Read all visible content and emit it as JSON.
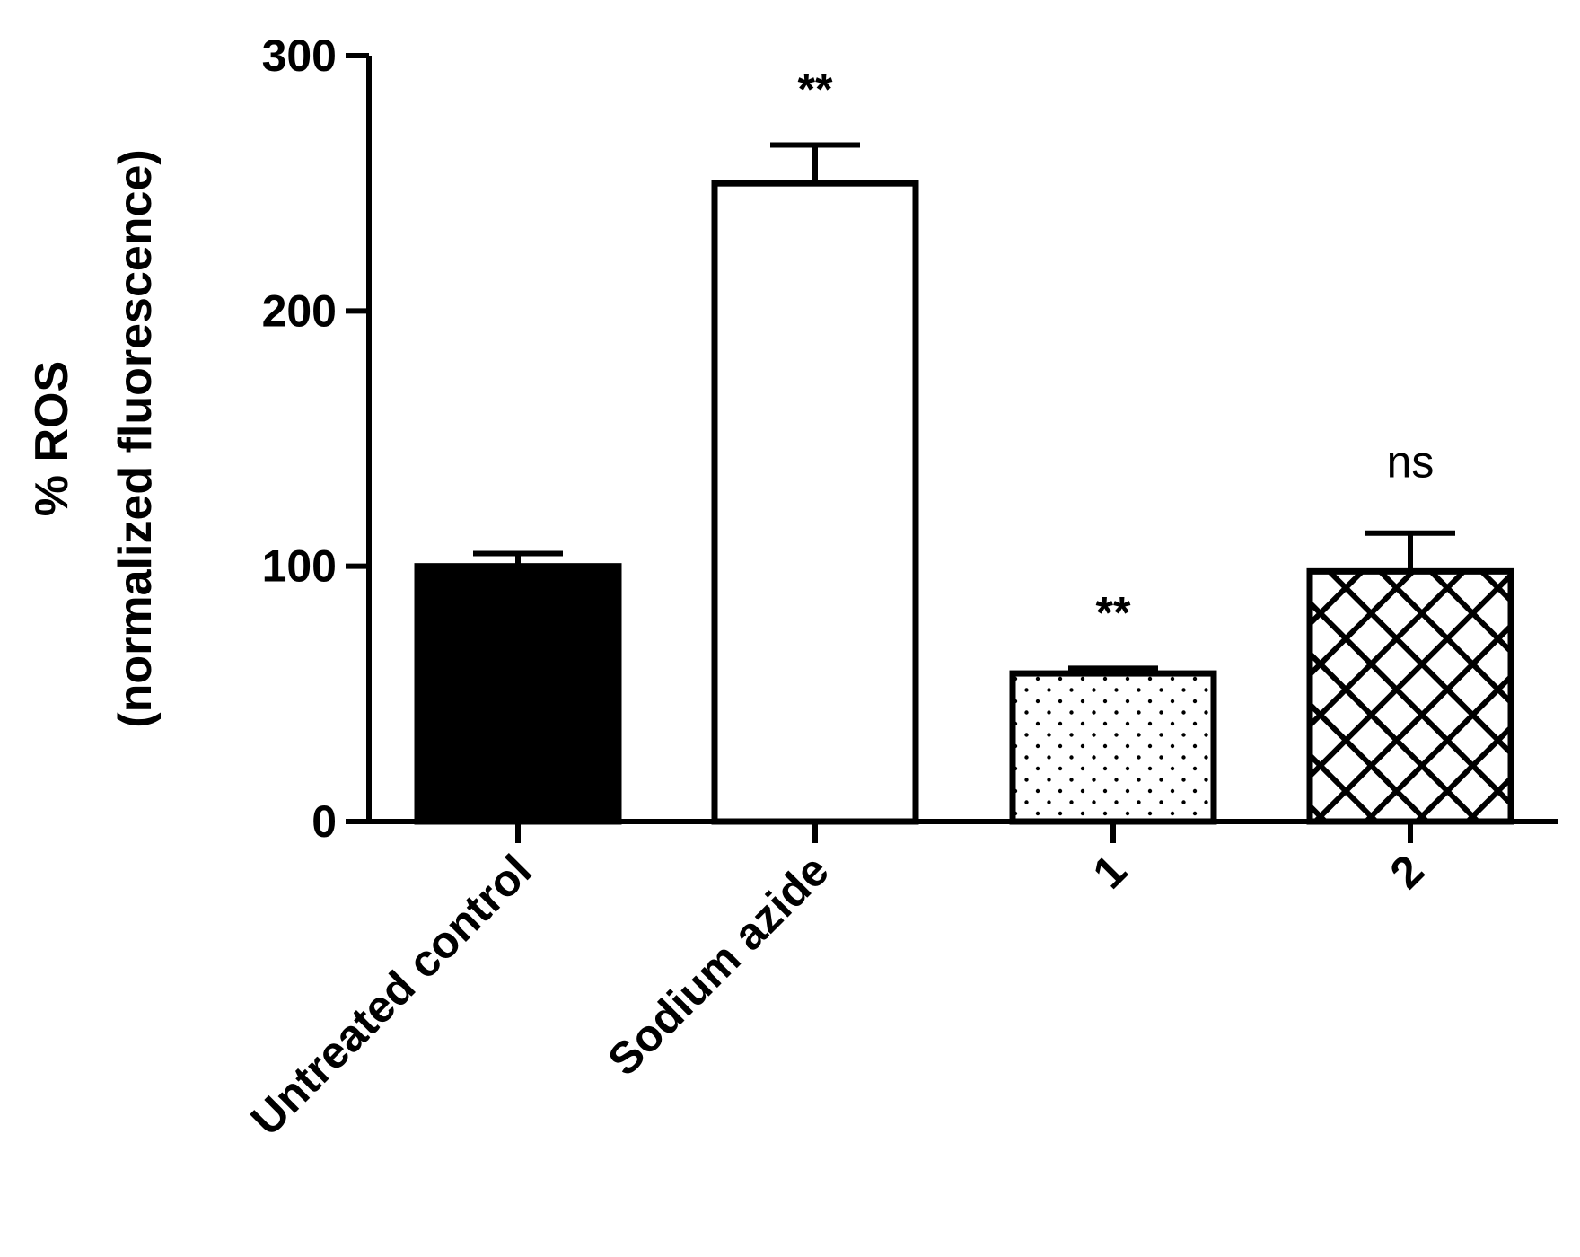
{
  "chart_data": {
    "type": "bar",
    "title": "",
    "ylabel_lines": [
      "% ROS",
      "(normalized fluorescence)"
    ],
    "xlabel": "",
    "ylim": [
      0,
      300
    ],
    "yticks": [
      0,
      100,
      200,
      300
    ],
    "categories": [
      "Untreated control",
      "Sodium azide",
      "1",
      "2"
    ],
    "values": [
      100,
      250,
      58,
      98
    ],
    "errors": [
      5,
      15,
      2,
      15
    ],
    "annotations": [
      "",
      "**",
      "**",
      "ns"
    ],
    "patterns": [
      "solid-black",
      "white",
      "dotted",
      "crosshatch"
    ],
    "grid": false,
    "colors": {
      "stroke": "#000000",
      "fill_dark": "#000000",
      "fill_light": "#ffffff"
    }
  }
}
